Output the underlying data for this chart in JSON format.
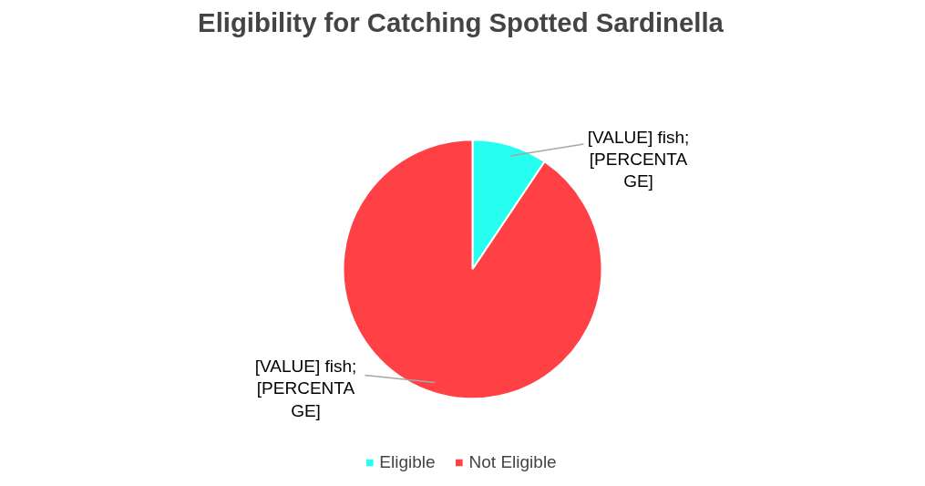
{
  "chart_data": {
    "type": "pie",
    "title": "Eligibility for Catching Spotted Sardinella",
    "categories": [
      "Eligible",
      "Not Eligible"
    ],
    "values": [
      9.4,
      90.6
    ],
    "colors": [
      "#26fff0",
      "#ff4045"
    ],
    "value_labels": [
      "[VALUE] fish;\n[PERCENTA\nGE]",
      "[VALUE] fish;\n[PERCENTA\nGE]"
    ],
    "legend": "bottom"
  }
}
